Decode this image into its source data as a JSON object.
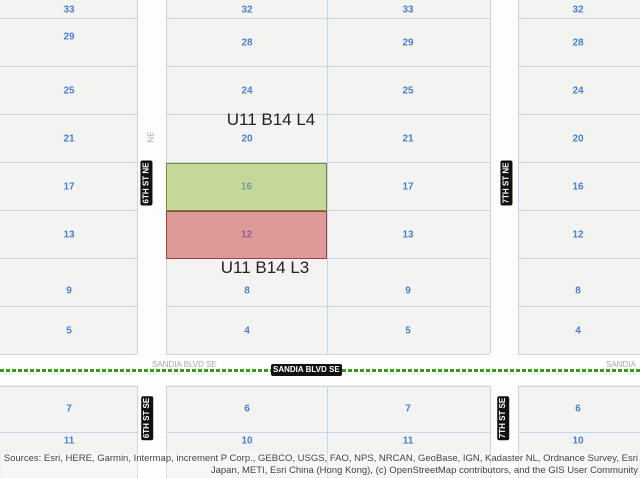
{
  "map": {
    "streets": {
      "sixth_ne": "6TH ST NE",
      "sixth_ne_suffix": "NE",
      "seventh_ne": "7TH ST NE",
      "sixth_se": "6TH ST SE",
      "seventh_se": "7TH ST SE",
      "sandia": "SANDIA BLVD SE",
      "sandia_faint": "SANDIA BLVD SE",
      "sandia_faint_right": "SANDIA"
    },
    "lot_columns": [
      [
        "33",
        "29",
        "25",
        "21",
        "17",
        "13",
        "9",
        "5",
        "7",
        "11"
      ],
      [
        "32",
        "28",
        "24",
        "20",
        "16",
        "12",
        "8",
        "4",
        "6",
        "10"
      ],
      [
        "33",
        "29",
        "25",
        "21",
        "17",
        "13",
        "9",
        "5",
        "7",
        "11"
      ],
      [
        "32",
        "28",
        "24",
        "20",
        "16",
        "12",
        "8",
        "4",
        "6",
        "10"
      ]
    ],
    "parcels": [
      {
        "label": "U11 B14 L4",
        "lot": "16",
        "fill": "#c5d89a",
        "stroke": "#6d8f3a"
      },
      {
        "label": "U11 B14 L3",
        "lot": "12",
        "fill": "#dd9a99",
        "stroke": "#a04040"
      }
    ],
    "attribution": "Sources: Esri, HERE, Garmin, Intermap, increment P Corp., GEBCO, USGS, FAO, NPS, NRCAN, GeoBase, IGN, Kadaster NL, Ordnance Survey, Esri Japan, METI, Esri China (Hong Kong), (c) OpenStreetMap contributors, and the GIS User Community"
  }
}
